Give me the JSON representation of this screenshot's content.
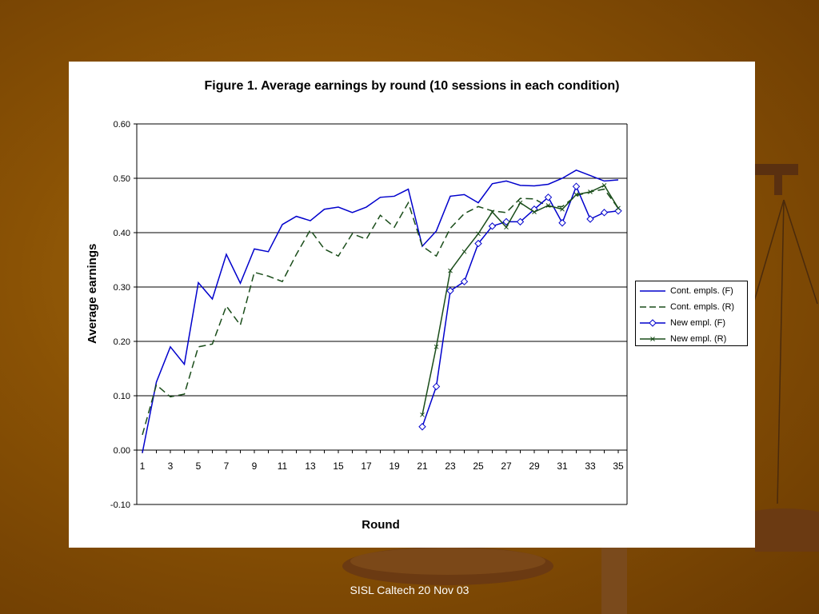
{
  "footer": {
    "text": "SISL Caltech 20 Nov 03"
  },
  "colors": {
    "background": "#8a5205",
    "blue": "#0000cc",
    "green": "#1a4d1a"
  },
  "chart_data": {
    "type": "line",
    "title": "Figure 1.  Average earnings by round (10 sessions in each condition)",
    "xlabel": "Round",
    "ylabel": "Average earnings",
    "x_tick_labels": [
      "1",
      "3",
      "5",
      "7",
      "9",
      "11",
      "13",
      "15",
      "17",
      "19",
      "21",
      "23",
      "25",
      "27",
      "29",
      "31",
      "33",
      "35"
    ],
    "y_tick_labels": [
      "0.60",
      "0.50",
      "0.40",
      "0.30",
      "0.20",
      "0.10",
      "0.00",
      "-0.10"
    ],
    "xlim": [
      1,
      35
    ],
    "ylim": [
      -0.1,
      0.6
    ],
    "grid": "horizontal",
    "legend_position": "right",
    "series": [
      {
        "name": "Cont. empls. (F)",
        "color": "#0000cc",
        "dash": "solid",
        "marker": "none",
        "x": [
          1,
          2,
          3,
          4,
          5,
          6,
          7,
          8,
          9,
          10,
          11,
          12,
          13,
          14,
          15,
          16,
          17,
          18,
          19,
          20,
          21,
          22,
          23,
          24,
          25,
          26,
          27,
          28,
          29,
          30,
          31,
          32,
          33,
          34,
          35
        ],
        "values": [
          -0.005,
          0.125,
          0.19,
          0.158,
          0.308,
          0.278,
          0.36,
          0.307,
          0.37,
          0.365,
          0.415,
          0.43,
          0.422,
          0.443,
          0.447,
          0.437,
          0.447,
          0.465,
          0.467,
          0.48,
          0.375,
          0.403,
          0.467,
          0.47,
          0.455,
          0.49,
          0.495,
          0.487,
          0.486,
          0.489,
          0.5,
          0.515,
          0.505,
          0.495,
          0.497
        ]
      },
      {
        "name": "Cont. empls. (R)",
        "color": "#1a4d1a",
        "dash": "long-dash",
        "marker": "none",
        "x": [
          1,
          2,
          3,
          4,
          5,
          6,
          7,
          8,
          9,
          10,
          11,
          12,
          13,
          14,
          15,
          16,
          17,
          18,
          19,
          20,
          21,
          22,
          23,
          24,
          25,
          26,
          27,
          28,
          29,
          30,
          31,
          32,
          33,
          34,
          35
        ],
        "values": [
          0.028,
          0.12,
          0.098,
          0.103,
          0.19,
          0.195,
          0.265,
          0.23,
          0.327,
          0.32,
          0.31,
          0.36,
          0.405,
          0.37,
          0.357,
          0.398,
          0.388,
          0.432,
          0.41,
          0.455,
          0.375,
          0.357,
          0.408,
          0.435,
          0.448,
          0.44,
          0.437,
          0.463,
          0.462,
          0.448,
          0.448,
          0.468,
          0.475,
          0.48,
          0.445
        ]
      },
      {
        "name": "New empl. (F)",
        "color": "#0000cc",
        "dash": "solid",
        "marker": "diamond",
        "x": [
          21,
          22,
          23,
          24,
          25,
          26,
          27,
          28,
          29,
          30,
          31,
          32,
          33,
          34,
          35
        ],
        "values": [
          0.043,
          0.117,
          0.293,
          0.31,
          0.38,
          0.412,
          0.42,
          0.42,
          0.443,
          0.465,
          0.418,
          0.485,
          0.425,
          0.437,
          0.44
        ]
      },
      {
        "name": "New empl. (R)",
        "color": "#1a4d1a",
        "dash": "solid",
        "marker": "cross",
        "x": [
          21,
          22,
          23,
          24,
          25,
          26,
          27,
          28,
          29,
          30,
          31,
          32,
          33,
          34,
          35
        ],
        "values": [
          0.065,
          0.19,
          0.33,
          0.365,
          0.398,
          0.438,
          0.41,
          0.455,
          0.438,
          0.45,
          0.443,
          0.47,
          0.475,
          0.487,
          0.445
        ]
      }
    ]
  }
}
